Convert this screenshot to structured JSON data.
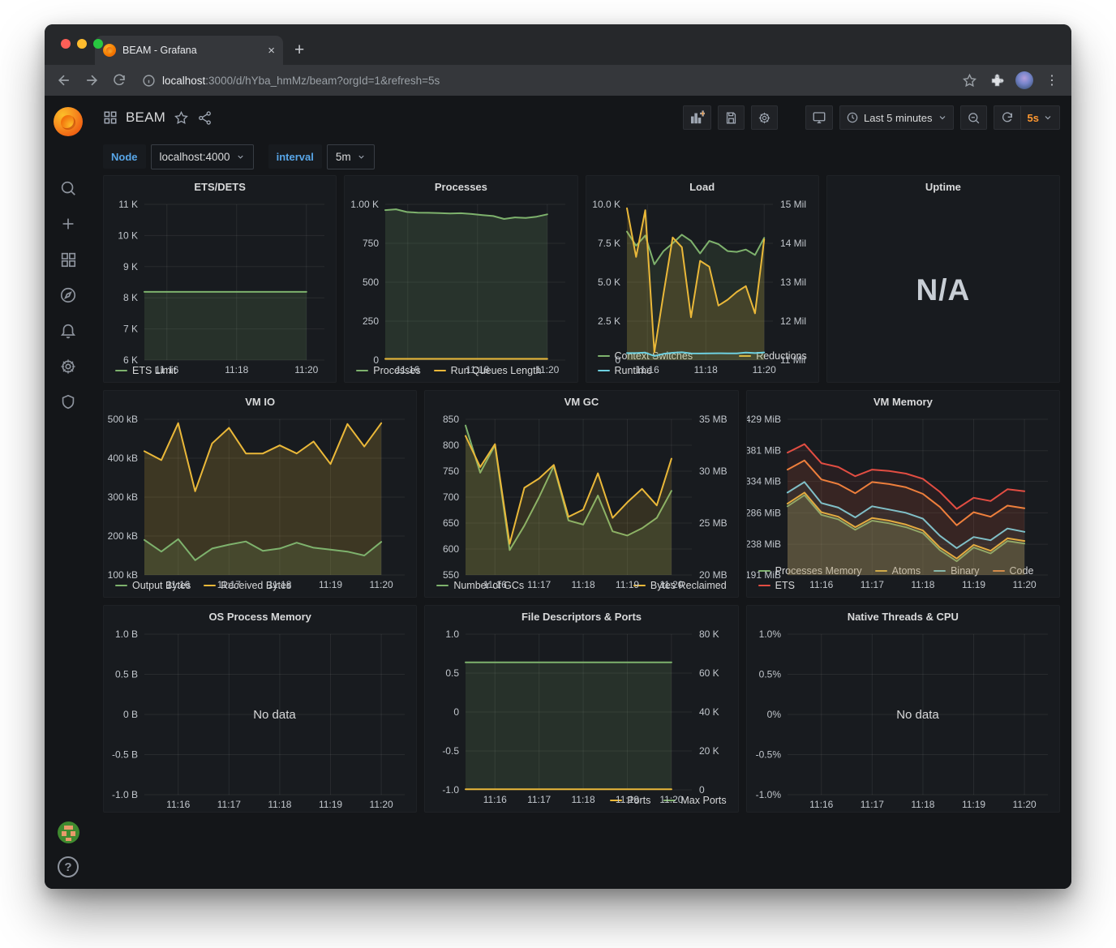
{
  "browser": {
    "tab_title": "BEAM - Grafana",
    "url_host": "localhost",
    "url_rest": ":3000/d/hYba_hmMz/beam?orgId=1&refresh=5s"
  },
  "icons": {
    "tab_close": "×",
    "new_tab": "+",
    "kebab": "⋮",
    "help": "?"
  },
  "header": {
    "title": "BEAM",
    "time_range": "Last 5 minutes",
    "refresh_interval": "5s"
  },
  "variables": {
    "node_label": "Node",
    "node_value": "localhost:4000",
    "interval_label": "interval",
    "interval_value": "5m"
  },
  "colors": {
    "green": "#7eb26d",
    "yellow": "#eab839",
    "cyan": "#6ed0e0",
    "orange_series": "#ef843c",
    "red": "#e24d42",
    "accent_orange": "#ff9830",
    "label_blue": "#58a6e8"
  },
  "chart_data": [
    {
      "id": "ets-dets",
      "type": "line",
      "title": "ETS/DETS",
      "x_ticks": [
        {
          "p": 0.125,
          "t": "11:16"
        },
        {
          "p": 0.5125,
          "t": "11:18"
        },
        {
          "p": 0.9,
          "t": "11:20"
        }
      ],
      "y_left": {
        "min": 6000,
        "max": 11000,
        "ticks": [
          [
            6000,
            "6 K"
          ],
          [
            7000,
            "7 K"
          ],
          [
            8000,
            "8 K"
          ],
          [
            9000,
            "9 K"
          ],
          [
            10000,
            "10 K"
          ],
          [
            11000,
            "11 K"
          ]
        ]
      },
      "series": [
        {
          "name": "ETS Limit",
          "color": "#7eb26d",
          "axis": "L",
          "fill": 0.15,
          "values": [
            8190,
            8190,
            8190,
            8190
          ]
        }
      ],
      "legend_rows": [
        [
          {
            "n": "ETS Limit",
            "c": "#7eb26d"
          }
        ]
      ]
    },
    {
      "id": "processes",
      "type": "line",
      "title": "Processes",
      "x_ticks": [
        {
          "p": 0.125,
          "t": "11:16"
        },
        {
          "p": 0.5125,
          "t": "11:18"
        },
        {
          "p": 0.9,
          "t": "11:20"
        }
      ],
      "y_left": {
        "min": 0,
        "max": 1000,
        "ticks": [
          [
            0,
            "0"
          ],
          [
            250,
            "250"
          ],
          [
            500,
            "500"
          ],
          [
            750,
            "750"
          ],
          [
            1000,
            "1.00 K"
          ]
        ]
      },
      "series": [
        {
          "name": "Processes",
          "color": "#7eb26d",
          "axis": "L",
          "fill": 0.16,
          "values": [
            963,
            968,
            951,
            947,
            946,
            944,
            941,
            943,
            938,
            931,
            925,
            906,
            916,
            913,
            921,
            936
          ]
        },
        {
          "name": "Run Queues Length",
          "color": "#eab839",
          "axis": "L",
          "fill": 0,
          "values": [
            8,
            8
          ]
        }
      ],
      "legend_rows": [
        [
          {
            "n": "Processes",
            "c": "#7eb26d"
          },
          {
            "n": "Run Queues Length",
            "c": "#eab839"
          }
        ]
      ]
    },
    {
      "id": "load",
      "type": "line",
      "title": "Load",
      "x_ticks": [
        {
          "p": 0.14,
          "t": "11:16"
        },
        {
          "p": 0.54,
          "t": "11:18"
        },
        {
          "p": 0.94,
          "t": "11:20"
        }
      ],
      "y_left": {
        "min": 0,
        "max": 10000,
        "ticks": [
          [
            0,
            "0"
          ],
          [
            2500,
            "2.5 K"
          ],
          [
            5000,
            "5.0 K"
          ],
          [
            7500,
            "7.5 K"
          ],
          [
            10000,
            "10.0 K"
          ]
        ]
      },
      "y_right": {
        "min": 11,
        "max": 15,
        "ticks": [
          [
            11,
            "11 Mil"
          ],
          [
            12,
            "12 Mil"
          ],
          [
            13,
            "13 Mil"
          ],
          [
            14,
            "14 Mil"
          ],
          [
            15,
            "15 Mil"
          ]
        ]
      },
      "series": [
        {
          "name": "Context Switches",
          "color": "#7eb26d",
          "axis": "L",
          "fill": 0.12,
          "values": [
            8250,
            7350,
            8000,
            6150,
            7000,
            7500,
            8050,
            7650,
            6850,
            7650,
            7450,
            7000,
            6950,
            7100,
            6750,
            7850
          ]
        },
        {
          "name": "Reductions",
          "color": "#eab839",
          "axis": "R",
          "fill": 0.16,
          "values": [
            14.9,
            13.65,
            14.85,
            11.2,
            12.7,
            14.15,
            13.9,
            12.1,
            13.55,
            13.4,
            12.4,
            12.55,
            12.75,
            12.9,
            12.2,
            14.1
          ]
        },
        {
          "name": "Runtime",
          "color": "#6ed0e0",
          "axis": "L",
          "fill": 0.05,
          "values": [
            450,
            450,
            480,
            260,
            400,
            470,
            500,
            430,
            420,
            430,
            440,
            430,
            430,
            480,
            450,
            490
          ]
        }
      ],
      "legend_rows": [
        [
          {
            "n": "Context Switches",
            "c": "#7eb26d"
          },
          {
            "n": "Reductions",
            "c": "#eab839",
            "r": true
          }
        ],
        [
          {
            "n": "Runtime",
            "c": "#6ed0e0"
          }
        ]
      ]
    },
    {
      "id": "uptime",
      "type": "stat",
      "title": "Uptime",
      "value": "N/A"
    },
    {
      "id": "vm-io",
      "type": "line",
      "title": "VM IO",
      "x_ticks": [
        {
          "p": 0.13,
          "t": "11:16"
        },
        {
          "p": 0.325,
          "t": "11:17"
        },
        {
          "p": 0.52,
          "t": "11:18"
        },
        {
          "p": 0.715,
          "t": "11:19"
        },
        {
          "p": 0.91,
          "t": "11:20"
        }
      ],
      "y_left": {
        "min": 100,
        "max": 500,
        "ticks": [
          [
            100,
            "100 kB"
          ],
          [
            200,
            "200 kB"
          ],
          [
            300,
            "300 kB"
          ],
          [
            400,
            "400 kB"
          ],
          [
            500,
            "500 kB"
          ]
        ]
      },
      "series": [
        {
          "name": "Received Bytes",
          "color": "#eab839",
          "axis": "L",
          "fill": 0.18,
          "values": [
            418,
            395,
            490,
            315,
            438,
            478,
            412,
            412,
            433,
            412,
            443,
            385,
            488,
            430,
            490
          ]
        },
        {
          "name": "Output Bytes",
          "color": "#7eb26d",
          "axis": "L",
          "fill": 0.14,
          "values": [
            190,
            160,
            192,
            138,
            168,
            178,
            186,
            162,
            168,
            183,
            170,
            165,
            160,
            150,
            185
          ]
        }
      ],
      "legend_rows": [
        [
          {
            "n": "Output Bytes",
            "c": "#7eb26d"
          },
          {
            "n": "Received Bytes",
            "c": "#eab839"
          }
        ]
      ]
    },
    {
      "id": "vm-gc",
      "type": "line",
      "title": "VM GC",
      "x_ticks": [
        {
          "p": 0.13,
          "t": "11:16"
        },
        {
          "p": 0.325,
          "t": "11:17"
        },
        {
          "p": 0.52,
          "t": "11:18"
        },
        {
          "p": 0.715,
          "t": "11:19"
        },
        {
          "p": 0.91,
          "t": "11:20"
        }
      ],
      "y_left": {
        "min": 550,
        "max": 850,
        "ticks": [
          [
            550,
            "550"
          ],
          [
            600,
            "600"
          ],
          [
            650,
            "650"
          ],
          [
            700,
            "700"
          ],
          [
            750,
            "750"
          ],
          [
            800,
            "800"
          ],
          [
            850,
            "850"
          ]
        ]
      },
      "y_right": {
        "min": 20,
        "max": 35,
        "ticks": [
          [
            20,
            "20 MB"
          ],
          [
            25,
            "25 MB"
          ],
          [
            30,
            "30 MB"
          ],
          [
            35,
            "35 MB"
          ]
        ]
      },
      "series": [
        {
          "name": "Number of GCs",
          "color": "#7eb26d",
          "axis": "L",
          "fill": 0.14,
          "values": [
            838,
            747,
            800,
            598,
            645,
            700,
            760,
            655,
            647,
            703,
            634,
            626,
            640,
            660,
            712
          ]
        },
        {
          "name": "Bytes Reclaimed",
          "color": "#eab839",
          "axis": "R",
          "fill": 0.14,
          "values": [
            33.4,
            30.4,
            32.6,
            23.0,
            28.4,
            29.3,
            30.6,
            25.6,
            26.3,
            29.8,
            25.5,
            27.0,
            28.3,
            26.7,
            31.2
          ]
        }
      ],
      "legend_rows": [
        [
          {
            "n": "Number of GCs",
            "c": "#7eb26d"
          },
          {
            "n": "Bytes Reclaimed",
            "c": "#eab839",
            "r": true
          }
        ]
      ]
    },
    {
      "id": "vm-memory",
      "type": "line",
      "title": "VM Memory",
      "x_ticks": [
        {
          "p": 0.13,
          "t": "11:16"
        },
        {
          "p": 0.325,
          "t": "11:17"
        },
        {
          "p": 0.52,
          "t": "11:18"
        },
        {
          "p": 0.715,
          "t": "11:19"
        },
        {
          "p": 0.91,
          "t": "11:20"
        }
      ],
      "y_left": {
        "min": 191,
        "max": 429,
        "ticks": [
          [
            191,
            "191 MiB"
          ],
          [
            238,
            "238 MiB"
          ],
          [
            286,
            "286 MiB"
          ],
          [
            334,
            "334 MiB"
          ],
          [
            381,
            "381 MiB"
          ],
          [
            429,
            "429 MiB"
          ]
        ]
      },
      "series": [
        {
          "name": "Processes Memory",
          "color": "#7eb26d",
          "axis": "L",
          "fill": 0.22,
          "values": [
            296,
            313,
            283,
            276,
            260,
            274,
            270,
            264,
            255,
            229,
            212,
            233,
            224,
            243,
            239
          ]
        },
        {
          "name": "Atoms",
          "color": "#eab839",
          "axis": "L",
          "fill": 0.06,
          "values": [
            300,
            317,
            287,
            280,
            264,
            278,
            274,
            268,
            259,
            233,
            216,
            237,
            228,
            247,
            243
          ]
        },
        {
          "name": "Binary",
          "color": "#6ed0e0",
          "axis": "L",
          "fill": 0.06,
          "values": [
            317,
            333,
            301,
            294,
            279,
            296,
            291,
            286,
            277,
            251,
            232,
            249,
            244,
            262,
            257
          ]
        },
        {
          "name": "Code",
          "color": "#ef843c",
          "axis": "L",
          "fill": 0.08,
          "values": [
            352,
            366,
            337,
            330,
            316,
            333,
            330,
            325,
            315,
            295,
            267,
            287,
            280,
            297,
            293
          ]
        },
        {
          "name": "ETS",
          "color": "#e24d42",
          "axis": "L",
          "fill": 0.08,
          "values": [
            378,
            391,
            362,
            356,
            342,
            352,
            350,
            346,
            338,
            318,
            292,
            309,
            304,
            322,
            319
          ]
        }
      ],
      "legend_rows": [
        [
          {
            "n": "Processes Memory",
            "c": "#7eb26d"
          },
          {
            "n": "Atoms",
            "c": "#eab839"
          },
          {
            "n": "Binary",
            "c": "#6ed0e0"
          },
          {
            "n": "Code",
            "c": "#ef843c"
          }
        ],
        [
          {
            "n": "ETS",
            "c": "#e24d42"
          }
        ]
      ]
    },
    {
      "id": "os-process-memory",
      "type": "line",
      "title": "OS Process Memory",
      "no_data": "No data",
      "x_ticks": [
        {
          "p": 0.13,
          "t": "11:16"
        },
        {
          "p": 0.325,
          "t": "11:17"
        },
        {
          "p": 0.52,
          "t": "11:18"
        },
        {
          "p": 0.715,
          "t": "11:19"
        },
        {
          "p": 0.91,
          "t": "11:20"
        }
      ],
      "y_left": {
        "min": -1,
        "max": 1,
        "ticks": [
          [
            -1,
            "-1.0 B"
          ],
          [
            -0.5,
            "-0.5 B"
          ],
          [
            0,
            "0 B"
          ],
          [
            0.5,
            "0.5 B"
          ],
          [
            1,
            "1.0 B"
          ]
        ]
      },
      "series": [],
      "legend_rows": []
    },
    {
      "id": "file-descriptors",
      "type": "line",
      "title": "File Descriptors & Ports",
      "x_ticks": [
        {
          "p": 0.13,
          "t": "11:16"
        },
        {
          "p": 0.325,
          "t": "11:17"
        },
        {
          "p": 0.52,
          "t": "11:18"
        },
        {
          "p": 0.715,
          "t": "11:19"
        },
        {
          "p": 0.91,
          "t": "11:20"
        }
      ],
      "y_left": {
        "min": -1,
        "max": 1,
        "ticks": [
          [
            -1,
            "-1.0"
          ],
          [
            -0.5,
            "-0.5"
          ],
          [
            0,
            "0"
          ],
          [
            0.5,
            "0.5"
          ],
          [
            1,
            "1.0"
          ]
        ]
      },
      "y_right": {
        "min": 0,
        "max": 80000,
        "ticks": [
          [
            0,
            "0"
          ],
          [
            20000,
            "20 K"
          ],
          [
            40000,
            "40 K"
          ],
          [
            60000,
            "60 K"
          ],
          [
            80000,
            "80 K"
          ]
        ]
      },
      "series": [
        {
          "name": "Max Ports",
          "color": "#7eb26d",
          "axis": "R",
          "fill": 0.15,
          "values": [
            65536,
            65536
          ]
        },
        {
          "name": "Ports",
          "color": "#eab839",
          "axis": "R",
          "fill": 0,
          "values": [
            300,
            300
          ]
        }
      ],
      "legend_rows": [
        [
          {
            "n": "Ports",
            "c": "#eab839",
            "r": true
          },
          {
            "n": "Max Ports",
            "c": "#7eb26d"
          }
        ]
      ]
    },
    {
      "id": "native-threads",
      "type": "line",
      "title": "Native Threads & CPU",
      "no_data": "No data",
      "x_ticks": [
        {
          "p": 0.13,
          "t": "11:16"
        },
        {
          "p": 0.325,
          "t": "11:17"
        },
        {
          "p": 0.52,
          "t": "11:18"
        },
        {
          "p": 0.715,
          "t": "11:19"
        },
        {
          "p": 0.91,
          "t": "11:20"
        }
      ],
      "y_left": {
        "min": -1,
        "max": 1,
        "ticks": [
          [
            -1,
            "-1.0%"
          ],
          [
            -0.5,
            "-0.5%"
          ],
          [
            0,
            "0%"
          ],
          [
            0.5,
            "0.5%"
          ],
          [
            1,
            "1.0%"
          ]
        ]
      },
      "series": [],
      "legend_rows": []
    }
  ]
}
